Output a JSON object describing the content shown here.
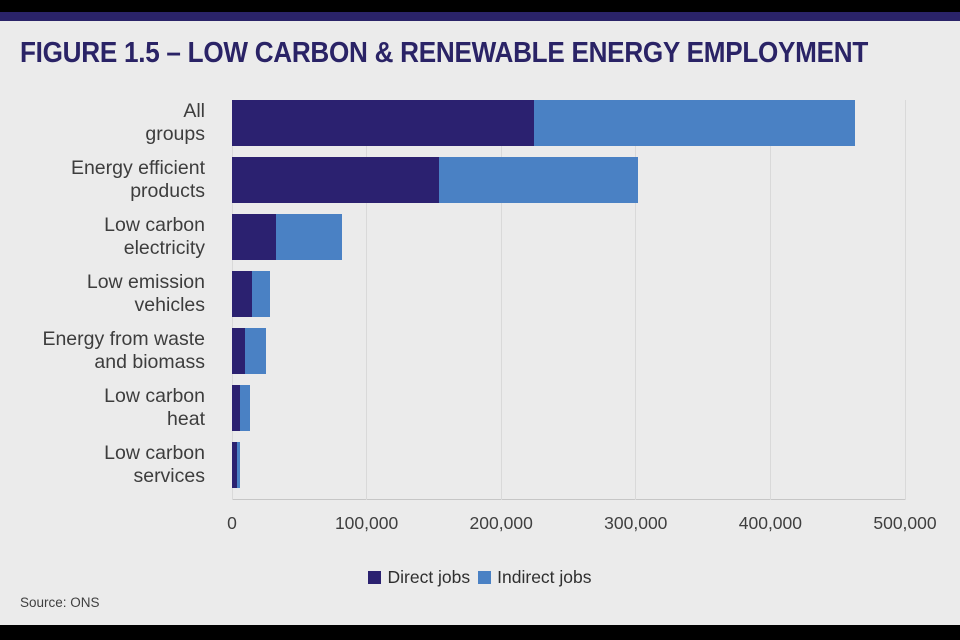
{
  "page": {
    "title": "FIGURE 1.5 – LOW CARBON & RENEWABLE ENERGY EMPLOYMENT",
    "source": "Source: ONS"
  },
  "colors": {
    "top_bar": "#000000",
    "header_stripe": "#2a2368",
    "title_text": "#2a2366",
    "background": "#ebebeb",
    "gridline": "#d9d9d9",
    "axis_text": "#3f3f3f",
    "label_text": "#3d3d3d",
    "direct": "#2b2170",
    "indirect": "#4a81c4"
  },
  "chart_data": {
    "type": "bar",
    "orientation": "horizontal",
    "stacked": true,
    "grid": true,
    "legend_position": "bottom",
    "categories": [
      "All groups",
      "Energy efficient products",
      "Low carbon electricity",
      "Low emission vehicles",
      "Energy from waste and biomass",
      "Low carbon heat",
      "Low carbon services"
    ],
    "category_lines": [
      [
        "All",
        "groups"
      ],
      [
        "Energy efficient",
        "products"
      ],
      [
        "Low carbon",
        "electricity"
      ],
      [
        "Low emission",
        "vehicles"
      ],
      [
        "Energy from waste",
        "and biomass"
      ],
      [
        "Low carbon",
        "heat"
      ],
      [
        "Low carbon",
        "services"
      ]
    ],
    "series": [
      {
        "name": "Direct jobs",
        "color": "#2b2170",
        "values": [
          224000,
          154000,
          33000,
          15000,
          9500,
          6000,
          3700
        ]
      },
      {
        "name": "Indirect jobs",
        "color": "#4a81c4",
        "values": [
          239000,
          148000,
          49000,
          13000,
          16000,
          7500,
          2000
        ]
      }
    ],
    "xlim": [
      0,
      500000
    ],
    "xticks": [
      0,
      100000,
      200000,
      300000,
      400000,
      500000
    ],
    "xtick_labels": [
      "0",
      "100,000",
      "200,000",
      "300,000",
      "400,000",
      "500,000"
    ]
  }
}
